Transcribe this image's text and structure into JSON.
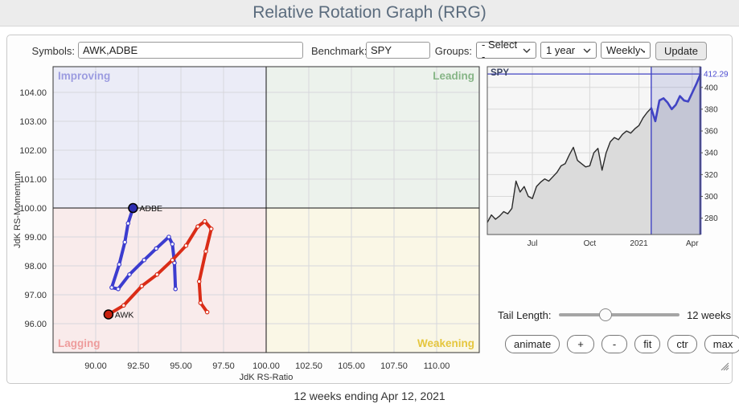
{
  "header": {
    "title": "Relative Rotation Graph (RRG)"
  },
  "toolbar": {
    "symbols_label": "Symbols:",
    "symbols_value": "AWK,ADBE",
    "benchmark_label": "Benchmark:",
    "benchmark_value": "SPY",
    "groups_label": "Groups:",
    "groups_value": "- Select -",
    "period_value": "1 year",
    "interval_value": "Weekly",
    "update_label": "Update"
  },
  "controls": {
    "tail_length_label": "Tail Length:",
    "tail_length_value": "12 weeks",
    "slider_pos_pct": 38,
    "buttons": [
      "animate",
      "+",
      "-",
      "fit",
      "ctr",
      "max"
    ]
  },
  "footer": {
    "caption": "12 weeks ending Apr 12, 2021"
  },
  "chart_data": [
    {
      "type": "scatter",
      "title": "RRG quadrant chart",
      "xlabel": "JdK RS-Ratio",
      "ylabel": "JdK RS-Momentum",
      "xlim": [
        87.5,
        112.5
      ],
      "ylim": [
        95.0,
        104.89
      ],
      "x_ticks": [
        90,
        92.5,
        95,
        97.5,
        100,
        102.5,
        105,
        107.5,
        110
      ],
      "x_tick_labels": [
        "90.00",
        "92.50",
        "95.00",
        "97.50",
        "100.00",
        "102.50",
        "105.00",
        "107.50",
        "110.00"
      ],
      "y_ticks": [
        96,
        97,
        98,
        99,
        100,
        101,
        102,
        103,
        104
      ],
      "y_tick_labels": [
        "96.00",
        "97.00",
        "98.00",
        "99.00",
        "100.00",
        "101.00",
        "102.00",
        "103.00",
        "104.00"
      ],
      "grid": true,
      "quadrants": {
        "improving": {
          "label": "Improving",
          "bg": "#ebecf7",
          "color": "#9c9ce0"
        },
        "leading": {
          "label": "Leading",
          "bg": "#ecf2ec",
          "color": "#86b586"
        },
        "lagging": {
          "label": "Lagging",
          "bg": "#f9ebeb",
          "color": "#ee9c9c"
        },
        "weakening": {
          "label": "Weakening",
          "bg": "#faf7e6",
          "color": "#e5c63e"
        }
      },
      "series": [
        {
          "name": "ADBE",
          "color": "#3c3ccf",
          "marker_color": "#2d2db0",
          "points": [
            [
              94.68,
              97.2
            ],
            [
              94.62,
              98.1
            ],
            [
              94.5,
              98.75
            ],
            [
              94.29,
              99.0
            ],
            [
              93.55,
              98.6
            ],
            [
              92.84,
              98.2
            ],
            [
              91.98,
              97.7
            ],
            [
              91.32,
              97.2
            ],
            [
              90.94,
              97.25
            ],
            [
              91.38,
              98.05
            ],
            [
              91.71,
              98.82
            ],
            [
              91.9,
              99.47
            ],
            [
              92.19,
              100.0
            ]
          ]
        },
        {
          "name": "AWK",
          "color": "#da2c17",
          "marker_color": "#c8200e",
          "points": [
            [
              96.54,
              96.4
            ],
            [
              96.15,
              96.72
            ],
            [
              96.07,
              97.46
            ],
            [
              96.46,
              98.5
            ],
            [
              96.78,
              99.28
            ],
            [
              96.4,
              99.54
            ],
            [
              95.99,
              99.36
            ],
            [
              95.3,
              98.7
            ],
            [
              94.5,
              98.2
            ],
            [
              93.6,
              97.7
            ],
            [
              92.7,
              97.3
            ],
            [
              91.64,
              96.63
            ],
            [
              90.75,
              96.32
            ]
          ]
        }
      ]
    },
    {
      "type": "area",
      "title": "SPY",
      "ylim": [
        265,
        419
      ],
      "y_ticks": [
        280,
        300,
        320,
        340,
        360,
        380,
        400
      ],
      "x_ticks": [
        {
          "i": 11,
          "label": "Jul"
        },
        {
          "i": 25,
          "label": "Oct"
        },
        {
          "i": 37,
          "label": "2021"
        },
        {
          "i": 50,
          "label": "Apr"
        }
      ],
      "values": [
        276,
        283,
        279,
        282,
        286,
        284,
        289,
        314,
        304,
        309,
        300,
        298,
        309,
        313,
        316,
        314,
        318,
        322,
        328,
        330,
        338,
        345,
        333,
        330,
        327,
        328,
        340,
        344,
        324,
        340,
        350,
        354,
        352,
        357,
        360,
        358,
        362,
        365,
        372,
        377,
        381,
        369,
        388,
        390,
        386,
        380,
        384,
        392,
        388,
        387,
        395,
        403,
        412
      ],
      "highlight_start_index": 40,
      "highlight_weeks": 12,
      "last_value": 412.29,
      "last_value_label": "412.29",
      "line_color": "#2b2b2b",
      "highlight_color": "#4144c4",
      "fill_color": "#dbdbdb",
      "label_color": "#3b4563"
    }
  ]
}
